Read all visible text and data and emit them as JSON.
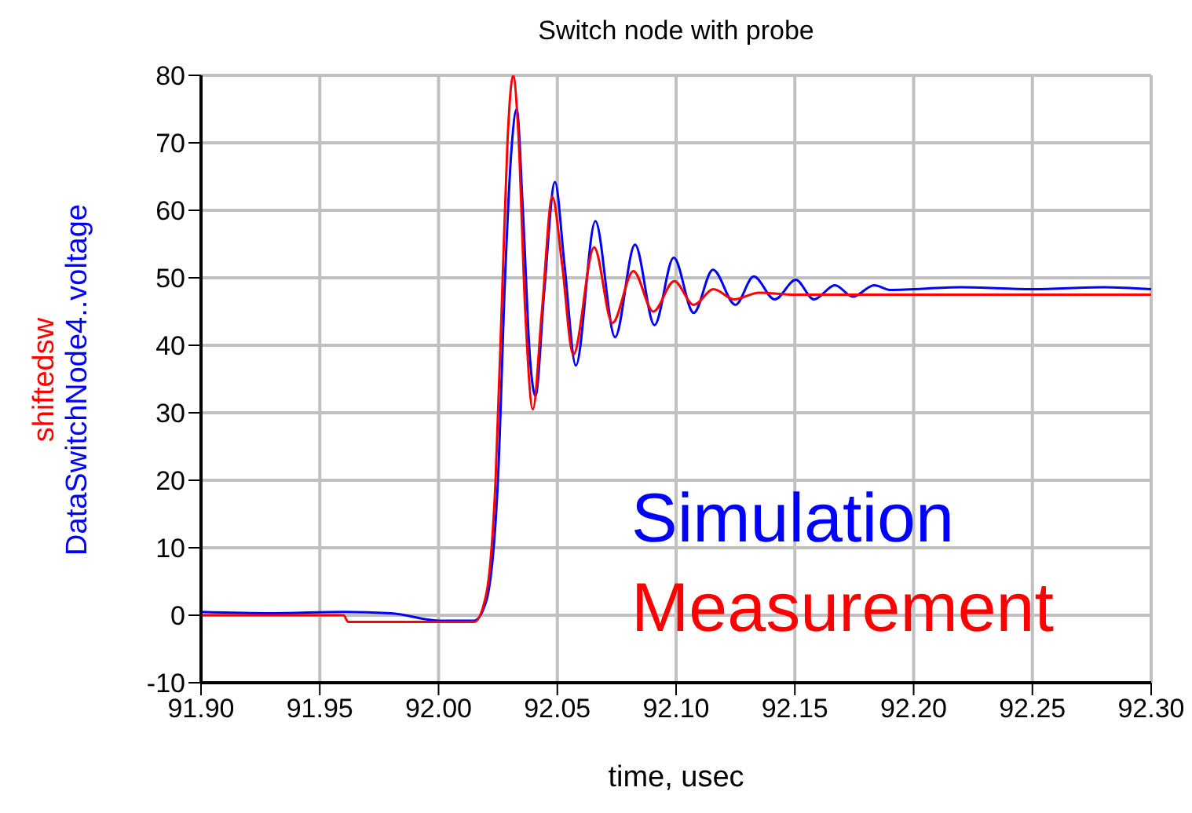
{
  "chart_data": {
    "type": "line",
    "title": "Switch node with probe",
    "xlabel": "time, usec",
    "xlim": [
      91.9,
      92.3
    ],
    "xticks": [
      {
        "value": 91.9,
        "label": "91.90"
      },
      {
        "value": 91.95,
        "label": "91.95"
      },
      {
        "value": 92.0,
        "label": "92.00"
      },
      {
        "value": 92.05,
        "label": "92.05"
      },
      {
        "value": 92.1,
        "label": "92.10"
      },
      {
        "value": 92.15,
        "label": "92.15"
      },
      {
        "value": 92.2,
        "label": "92.20"
      },
      {
        "value": 92.25,
        "label": "92.25"
      },
      {
        "value": 92.3,
        "label": "92.30"
      }
    ],
    "ylim": [
      -10,
      80
    ],
    "yticks": [
      -10,
      0,
      10,
      20,
      30,
      40,
      50,
      60,
      70,
      80
    ],
    "grid": true,
    "marker": "none",
    "line_style": "solid",
    "annotations": [
      "Simulation",
      "Measurement"
    ],
    "series": [
      {
        "name": "DataSwitchNode4..voltage",
        "color": "#0000ff",
        "x": [
          91.9,
          91.93,
          91.96,
          91.98,
          92.0,
          92.015,
          92.02,
          92.025,
          92.028,
          92.0305,
          92.0329,
          92.0355,
          92.0385,
          92.0408,
          92.0445,
          92.049,
          92.053,
          92.0578,
          92.066,
          92.0743,
          92.0827,
          92.0909,
          92.099,
          92.1074,
          92.1155,
          92.125,
          92.1327,
          92.1415,
          92.1504,
          92.158,
          92.1669,
          92.1744,
          92.1834,
          92.19,
          92.22,
          92.25,
          92.28,
          92.3
        ],
        "values": [
          0.5,
          0.3,
          0.5,
          0.3,
          -0.8,
          -0.8,
          2,
          20,
          50,
          68,
          75,
          60,
          38,
          32.5,
          48,
          64.2,
          52,
          37,
          58.4,
          41.2,
          54.9,
          43,
          53,
          44.8,
          51.2,
          46,
          50.2,
          46.8,
          49.7,
          46.8,
          48.9,
          47.2,
          48.9,
          48.2,
          48.6,
          48.3,
          48.6,
          48.3
        ]
      },
      {
        "name": "shiftedsw",
        "color": "#ff0000",
        "x": [
          91.9,
          91.96,
          91.962,
          92.015,
          92.02,
          92.024,
          92.027,
          92.029,
          92.0314,
          92.0335,
          92.0365,
          92.0397,
          92.0435,
          92.0479,
          92.052,
          92.0567,
          92.0655,
          92.0732,
          92.082,
          92.0904,
          92.0992,
          92.1074,
          92.1158,
          92.1244,
          92.135,
          92.15,
          92.3
        ],
        "values": [
          0,
          0,
          -1,
          -1,
          3,
          20,
          50,
          70,
          80,
          72,
          45,
          30.5,
          45,
          62,
          52,
          38.6,
          54.5,
          43.3,
          51,
          45,
          49.5,
          46,
          48.3,
          46.8,
          47.8,
          47.5,
          47.5
        ]
      }
    ]
  }
}
